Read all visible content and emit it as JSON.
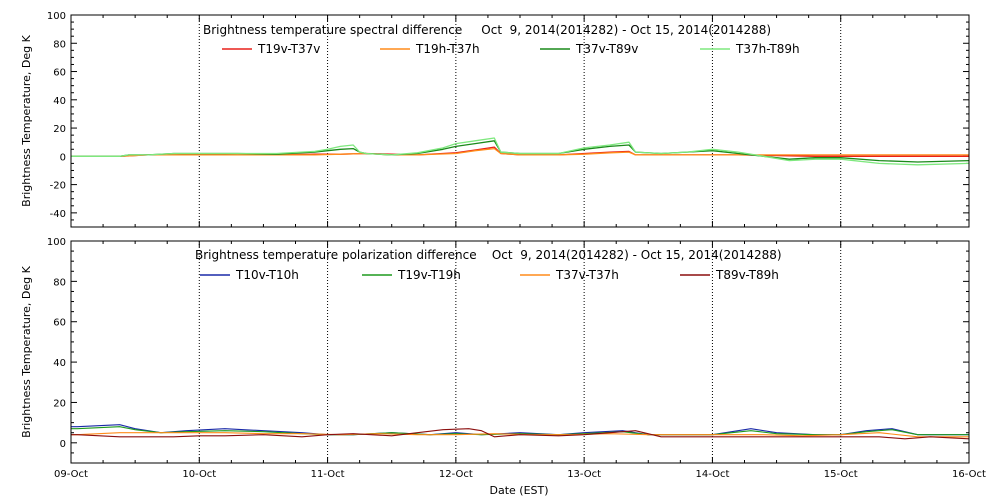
{
  "xlabel": "Date (EST)",
  "x_tick_labels": [
    "09-Oct",
    "10-Oct",
    "11-Oct",
    "12-Oct",
    "13-Oct",
    "14-Oct",
    "15-Oct",
    "16-Oct"
  ],
  "chart_data": [
    {
      "type": "line",
      "title": "Brightness temperature spectral difference     Oct  9, 2014(2014282) - Oct 15, 2014(2014288)",
      "xlabel": "",
      "ylabel": "Brightness Temperature, Deg K",
      "x_unit": "days since 09-Oct",
      "xlim": [
        0,
        7
      ],
      "ylim": [
        -50,
        100
      ],
      "y_ticks": [
        -40,
        -20,
        0,
        20,
        40,
        60,
        80,
        100
      ],
      "grid": "vertical dotted at each day",
      "legend_position": "top",
      "series": [
        {
          "name": "T19v-T37v",
          "color": "#e8201a",
          "x": [
            0,
            0.05,
            0.38,
            0.6,
            0.8,
            1.0,
            1.3,
            1.6,
            1.9,
            2.1,
            2.3,
            2.5,
            2.7,
            3.0,
            3.15,
            3.3,
            3.35,
            3.5,
            3.8,
            4.0,
            4.2,
            4.35,
            4.4,
            4.6,
            4.8,
            5.0,
            5.2,
            5.5,
            5.8,
            6.0,
            6.3,
            6.6,
            7.0
          ],
          "y": [
            0,
            0,
            0,
            1,
            1,
            1.5,
            1,
            1,
            1.5,
            1.5,
            2,
            1.5,
            1,
            2.5,
            4.5,
            6.5,
            2,
            1,
            1,
            2,
            3,
            3.5,
            1,
            1,
            1,
            1,
            1,
            0.5,
            0,
            0,
            0,
            0,
            0
          ]
        },
        {
          "name": "T19h-T37h",
          "color": "#ff8c1a",
          "x": [
            0,
            0.05,
            0.38,
            0.6,
            0.8,
            1.0,
            1.3,
            1.6,
            1.9,
            2.1,
            2.3,
            2.5,
            2.7,
            3.0,
            3.15,
            3.3,
            3.35,
            3.5,
            3.8,
            4.0,
            4.2,
            4.35,
            4.4,
            4.6,
            4.8,
            5.0,
            5.2,
            5.5,
            5.8,
            6.0,
            6.3,
            6.6,
            7.0
          ],
          "y": [
            0,
            0,
            0,
            1,
            1,
            1,
            1,
            1,
            1,
            1.5,
            2,
            1,
            1,
            2,
            4,
            5.5,
            2,
            1,
            1,
            1.5,
            2.5,
            3,
            1,
            1,
            1,
            1,
            1,
            1,
            1,
            1,
            1,
            1,
            1
          ]
        },
        {
          "name": "T37v-T89v",
          "color": "#1a8a1a",
          "x": [
            0,
            0.05,
            0.38,
            0.45,
            0.6,
            0.8,
            1.0,
            1.3,
            1.6,
            1.9,
            2.0,
            2.1,
            2.2,
            2.25,
            2.3,
            2.5,
            2.7,
            2.9,
            3.0,
            3.15,
            3.3,
            3.35,
            3.5,
            3.8,
            4.0,
            4.2,
            4.35,
            4.4,
            4.6,
            4.8,
            5.0,
            5.2,
            5.4,
            5.6,
            5.8,
            6.0,
            6.3,
            6.6,
            7.0
          ],
          "y": [
            0,
            0,
            0,
            1,
            1,
            2,
            2,
            2,
            1.5,
            3,
            4,
            5,
            5.5,
            3,
            2,
            1,
            2,
            5,
            7,
            9,
            11,
            3,
            2,
            2,
            5,
            7,
            8,
            3,
            2,
            3,
            4,
            2,
            0,
            -2,
            -1,
            -1,
            -3,
            -4,
            -3
          ]
        },
        {
          "name": "T37h-T89h",
          "color": "#7ee87e",
          "x": [
            0,
            0.05,
            0.38,
            0.45,
            0.6,
            0.8,
            1.0,
            1.3,
            1.6,
            1.9,
            2.0,
            2.1,
            2.2,
            2.25,
            2.3,
            2.5,
            2.7,
            2.9,
            3.0,
            3.15,
            3.3,
            3.35,
            3.5,
            3.8,
            4.0,
            4.2,
            4.35,
            4.4,
            4.6,
            4.8,
            5.0,
            5.2,
            5.4,
            5.6,
            5.8,
            6.0,
            6.3,
            6.6,
            7.0
          ],
          "y": [
            0,
            0,
            0,
            1,
            1,
            2,
            2,
            2,
            2,
            3.5,
            5,
            7,
            8,
            3,
            2,
            1,
            2.5,
            6,
            9,
            11,
            13,
            3,
            2,
            2,
            6,
            8,
            10,
            3,
            2,
            3,
            5,
            3,
            0,
            -3,
            -2,
            -2,
            -5,
            -6,
            -5
          ]
        }
      ]
    },
    {
      "type": "line",
      "title": "Brightness temperature polarization difference    Oct  9, 2014(2014282) - Oct 15, 2014(2014288)",
      "xlabel": "Date (EST)",
      "ylabel": "Brightness Temperature, Deg K",
      "x_unit": "days since 09-Oct",
      "xlim": [
        0,
        7
      ],
      "ylim": [
        -10,
        100
      ],
      "y_ticks": [
        0,
        20,
        40,
        60,
        80,
        100
      ],
      "grid": "vertical dotted at each day",
      "legend_position": "top",
      "series": [
        {
          "name": "T10v-T10h",
          "color": "#1a2aa8",
          "x": [
            0,
            0.05,
            0.38,
            0.5,
            0.7,
            0.9,
            1.2,
            1.5,
            1.8,
            2.0,
            2.2,
            2.5,
            2.8,
            3.0,
            3.2,
            3.5,
            3.8,
            4.0,
            4.3,
            4.5,
            4.8,
            5.0,
            5.3,
            5.5,
            5.8,
            6.0,
            6.2,
            6.4,
            6.6,
            6.8,
            7.0
          ],
          "y": [
            8,
            8,
            9,
            7,
            5,
            6,
            7,
            6,
            5,
            4,
            4,
            5,
            4,
            5,
            4,
            5,
            4,
            5,
            6,
            4,
            4,
            4,
            7,
            5,
            4,
            4,
            6,
            7,
            4,
            4,
            4
          ]
        },
        {
          "name": "T19v-T19h",
          "color": "#1e9a1e",
          "x": [
            0,
            0.05,
            0.38,
            0.5,
            0.7,
            0.9,
            1.2,
            1.5,
            1.8,
            2.0,
            2.2,
            2.5,
            2.8,
            3.0,
            3.2,
            3.5,
            3.8,
            4.0,
            4.3,
            4.5,
            4.8,
            5.0,
            5.3,
            5.5,
            5.8,
            6.0,
            6.2,
            6.4,
            6.6,
            6.8,
            7.0
          ],
          "y": [
            7,
            7,
            8,
            6.5,
            5,
            5.5,
            6,
            5.5,
            4.5,
            4,
            4,
            5,
            4,
            4.5,
            4,
            4.5,
            4,
            4.5,
            5.5,
            4,
            4,
            4,
            6,
            4.5,
            4,
            4,
            5.5,
            6.5,
            4,
            4,
            4
          ]
        },
        {
          "name": "T37v-T37h",
          "color": "#ff8c1a",
          "x": [
            0,
            0.05,
            0.38,
            0.6,
            0.9,
            1.2,
            1.5,
            1.8,
            2.1,
            2.4,
            2.7,
            3.0,
            3.3,
            3.6,
            3.9,
            4.2,
            4.5,
            4.8,
            5.1,
            5.4,
            5.7,
            6.0,
            6.3,
            6.6,
            7.0
          ],
          "y": [
            4,
            4,
            5,
            5,
            5,
            5,
            4.5,
            4.5,
            4,
            4.5,
            4,
            4,
            4.5,
            4,
            4,
            4.5,
            4,
            4,
            4,
            4,
            3.5,
            4,
            5,
            3,
            3
          ]
        },
        {
          "name": "T89v-T89h",
          "color": "#8b0f0f",
          "x": [
            0,
            0.05,
            0.38,
            0.6,
            0.8,
            1.0,
            1.2,
            1.5,
            1.8,
            2.0,
            2.2,
            2.5,
            2.7,
            2.9,
            3.1,
            3.2,
            3.3,
            3.5,
            3.8,
            4.0,
            4.2,
            4.4,
            4.6,
            4.8,
            5.0,
            5.3,
            5.5,
            5.8,
            6.0,
            6.3,
            6.5,
            6.7,
            7.0
          ],
          "y": [
            4,
            4,
            3,
            3,
            3,
            3.5,
            3.5,
            4,
            3,
            4,
            4.5,
            3.5,
            5,
            6.5,
            7,
            6,
            3,
            4,
            3.5,
            4,
            5,
            6,
            3,
            3,
            3,
            3,
            3,
            3,
            3,
            3,
            2,
            3,
            2
          ]
        }
      ]
    }
  ]
}
